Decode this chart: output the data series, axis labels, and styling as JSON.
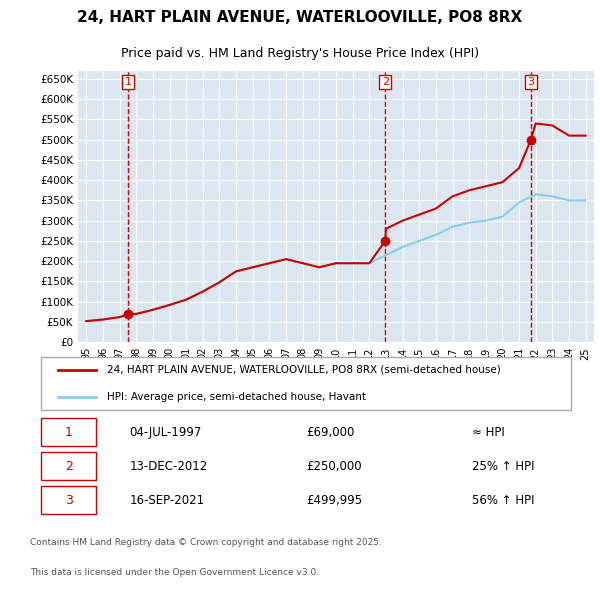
{
  "title_line1": "24, HART PLAIN AVENUE, WATERLOOVILLE, PO8 8RX",
  "title_line2": "Price paid vs. HM Land Registry's House Price Index (HPI)",
  "legend_line1": "24, HART PLAIN AVENUE, WATERLOOVILLE, PO8 8RX (semi-detached house)",
  "legend_line2": "HPI: Average price, semi-detached house, Havant",
  "footer_line1": "Contains HM Land Registry data © Crown copyright and database right 2025.",
  "footer_line2": "This data is licensed under the Open Government Licence v3.0.",
  "sale_color": "#cc0000",
  "hpi_color": "#87CEEB",
  "bg_color": "#dce6f1",
  "plot_bg": "#dce6f1",
  "grid_color": "#ffffff",
  "vline_color": "#cc0000",
  "sale_marker_color": "#cc0000",
  "table_entries": [
    {
      "num": 1,
      "date": "04-JUL-1997",
      "price": "£69,000",
      "rel": "≈ HPI"
    },
    {
      "num": 2,
      "date": "13-DEC-2012",
      "price": "£250,000",
      "rel": "25% ↑ HPI"
    },
    {
      "num": 3,
      "date": "16-SEP-2021",
      "price": "£499,995",
      "rel": "56% ↑ HPI"
    }
  ],
  "sale_dates": [
    1997.5,
    2012.96,
    2021.71
  ],
  "sale_prices": [
    69000,
    250000,
    499995
  ],
  "sale_labels": [
    "1",
    "2",
    "3"
  ],
  "hpi_years": [
    1995,
    1996,
    1997,
    1998,
    1999,
    2000,
    2001,
    2002,
    2003,
    2004,
    2005,
    2006,
    2007,
    2008,
    2009,
    2010,
    2011,
    2012,
    2013,
    2014,
    2015,
    2016,
    2017,
    2018,
    2019,
    2020,
    2021,
    2022,
    2023,
    2024,
    2025
  ],
  "hpi_values": [
    52000,
    56000,
    62000,
    70000,
    80000,
    92000,
    105000,
    125000,
    148000,
    175000,
    185000,
    195000,
    205000,
    195000,
    185000,
    195000,
    195000,
    195000,
    215000,
    235000,
    250000,
    265000,
    285000,
    295000,
    300000,
    310000,
    345000,
    365000,
    360000,
    350000,
    350000
  ],
  "price_line_years": [
    1995,
    1996,
    1997,
    1997.5,
    1998,
    1999,
    2000,
    2001,
    2002,
    2003,
    2004,
    2005,
    2006,
    2007,
    2008,
    2009,
    2010,
    2011,
    2012,
    2012.96,
    2013,
    2014,
    2015,
    2016,
    2017,
    2018,
    2019,
    2020,
    2021,
    2021.71,
    2022,
    2023,
    2024,
    2025
  ],
  "price_line_values": [
    52000,
    56000,
    62000,
    69000,
    70000,
    80000,
    92000,
    105000,
    125000,
    148000,
    175000,
    185000,
    195000,
    205000,
    195000,
    185000,
    195000,
    195000,
    195000,
    250000,
    280000,
    300000,
    315000,
    330000,
    360000,
    375000,
    385000,
    395000,
    430000,
    499995,
    540000,
    535000,
    510000,
    510000
  ],
  "ylim": [
    0,
    670000
  ],
  "xlim": [
    1994.5,
    2025.5
  ],
  "yticks": [
    0,
    50000,
    100000,
    150000,
    200000,
    250000,
    300000,
    350000,
    400000,
    450000,
    500000,
    550000,
    600000,
    650000
  ],
  "ytick_labels": [
    "£0",
    "£50K",
    "£100K",
    "£150K",
    "£200K",
    "£250K",
    "£300K",
    "£350K",
    "£400K",
    "£450K",
    "£500K",
    "£550K",
    "£600K",
    "£650K"
  ],
  "xticks": [
    1995,
    1996,
    1997,
    1998,
    1999,
    2000,
    2001,
    2002,
    2003,
    2004,
    2005,
    2006,
    2007,
    2008,
    2009,
    2010,
    2011,
    2012,
    2013,
    2014,
    2015,
    2016,
    2017,
    2018,
    2019,
    2020,
    2021,
    2022,
    2023,
    2024,
    2025
  ],
  "xtick_labels": [
    "95",
    "96",
    "97",
    "98",
    "99",
    "00",
    "01",
    "02",
    "03",
    "04",
    "05",
    "06",
    "07",
    "08",
    "09",
    "10",
    "11",
    "12",
    "13",
    "14",
    "15",
    "16",
    "17",
    "18",
    "19",
    "20",
    "21",
    "22",
    "23",
    "24",
    "25"
  ]
}
